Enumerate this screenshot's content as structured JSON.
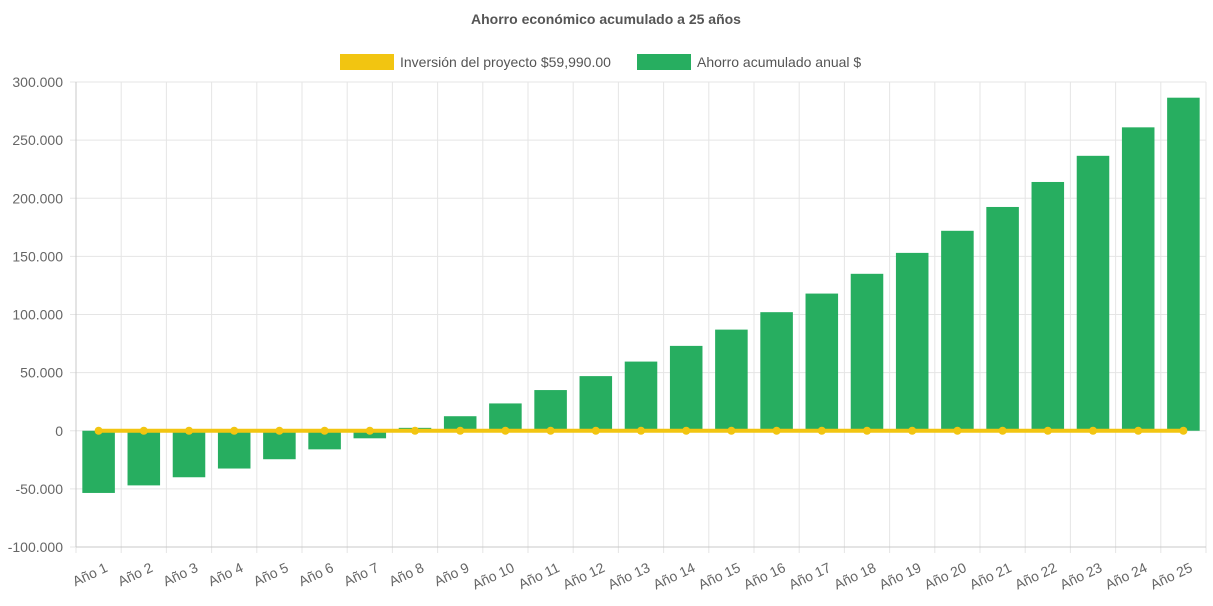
{
  "chart_data": {
    "type": "bar",
    "title": "Ahorro económico acumulado a 25 años",
    "categories": [
      "Año 1",
      "Año 2",
      "Año 3",
      "Año 4",
      "Año 5",
      "Año 6",
      "Año 7",
      "Año 8",
      "Año 9",
      "Año 10",
      "Año 11",
      "Año 12",
      "Año 13",
      "Año 14",
      "Año 15",
      "Año 16",
      "Año 17",
      "Año 18",
      "Año 19",
      "Año 20",
      "Año 21",
      "Año 22",
      "Año 23",
      "Año 24",
      "Año 25"
    ],
    "series": [
      {
        "name": "Inversión del proyecto $59,990.00",
        "type": "line",
        "color": "#f2c511",
        "values": [
          0,
          0,
          0,
          0,
          0,
          0,
          0,
          0,
          0,
          0,
          0,
          0,
          0,
          0,
          0,
          0,
          0,
          0,
          0,
          0,
          0,
          0,
          0,
          0,
          0
        ]
      },
      {
        "name": "Ahorro acumulado anual $",
        "type": "bar",
        "color": "#27ae60",
        "values": [
          -53500,
          -47000,
          -40000,
          -32500,
          -24500,
          -16000,
          -6500,
          2500,
          12500,
          23500,
          35000,
          47000,
          59500,
          73000,
          87000,
          102000,
          118000,
          135000,
          153000,
          172000,
          192500,
          214000,
          236500,
          261000,
          286500
        ]
      }
    ],
    "ylim": [
      -100000,
      300000
    ],
    "yticks": [
      "300.000",
      "250.000",
      "200.000",
      "150.000",
      "100.000",
      "50.000",
      "0",
      "-50.000",
      "-100.000"
    ],
    "ytick_values": [
      300000,
      250000,
      200000,
      150000,
      100000,
      50000,
      0,
      -50000,
      -100000
    ],
    "grid": true,
    "legend_position": "top"
  }
}
